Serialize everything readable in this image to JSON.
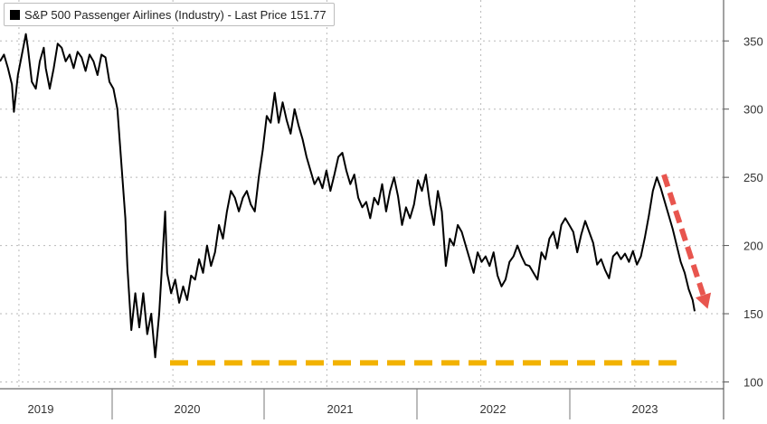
{
  "chart_data": {
    "type": "line",
    "legend": {
      "entries": [
        "S&P 500 Passenger Airlines (Industry) - Last Price 151.77"
      ],
      "placement": "top-left",
      "last_price": 151.77
    },
    "x_tick_labels": [
      "2019",
      "2020",
      "2021",
      "2022",
      "2023"
    ],
    "y_tick_labels": [
      "100",
      "150",
      "200",
      "250",
      "300",
      "350"
    ],
    "ylim": [
      95,
      380
    ],
    "xlim": [
      2019.0,
      2023.7
    ],
    "grid": true,
    "colors": {
      "line": "#000000",
      "support": "#f2b200",
      "trend_arrow": "#e8554e"
    },
    "series": [
      {
        "name": "S&P 500 Passenger Airlines (Industry) - Last Price 151.77",
        "points": [
          [
            2019.0,
            335
          ],
          [
            2019.02,
            340
          ],
          [
            2019.04,
            330
          ],
          [
            2019.06,
            318
          ],
          [
            2019.07,
            298
          ],
          [
            2019.09,
            325
          ],
          [
            2019.11,
            340
          ],
          [
            2019.13,
            355
          ],
          [
            2019.14,
            345
          ],
          [
            2019.16,
            320
          ],
          [
            2019.18,
            315
          ],
          [
            2019.2,
            335
          ],
          [
            2019.22,
            345
          ],
          [
            2019.23,
            330
          ],
          [
            2019.25,
            315
          ],
          [
            2019.27,
            330
          ],
          [
            2019.29,
            348
          ],
          [
            2019.31,
            345
          ],
          [
            2019.33,
            335
          ],
          [
            2019.35,
            340
          ],
          [
            2019.37,
            330
          ],
          [
            2019.39,
            342
          ],
          [
            2019.41,
            338
          ],
          [
            2019.43,
            328
          ],
          [
            2019.45,
            340
          ],
          [
            2019.47,
            335
          ],
          [
            2019.49,
            325
          ],
          [
            2019.51,
            340
          ],
          [
            2019.53,
            338
          ],
          [
            2019.55,
            320
          ],
          [
            2019.57,
            315
          ],
          [
            2019.59,
            300
          ],
          [
            2019.61,
            260
          ],
          [
            2019.63,
            220
          ],
          [
            2019.64,
            185
          ],
          [
            2019.66,
            138
          ],
          [
            2019.68,
            165
          ],
          [
            2019.7,
            140
          ],
          [
            2019.72,
            165
          ],
          [
            2019.74,
            135
          ],
          [
            2019.76,
            150
          ],
          [
            2019.78,
            118
          ],
          [
            2019.8,
            150
          ],
          [
            2019.82,
            200
          ],
          [
            2019.83,
            225
          ],
          [
            2019.84,
            180
          ],
          [
            2019.86,
            165
          ],
          [
            2019.88,
            175
          ],
          [
            2019.9,
            158
          ],
          [
            2019.92,
            170
          ],
          [
            2019.94,
            160
          ],
          [
            2019.96,
            178
          ],
          [
            2019.98,
            175
          ],
          [
            2020.0,
            190
          ],
          [
            2020.02,
            180
          ],
          [
            2020.04,
            200
          ],
          [
            2020.06,
            185
          ],
          [
            2020.08,
            195
          ],
          [
            2020.1,
            215
          ],
          [
            2020.12,
            205
          ],
          [
            2020.14,
            225
          ],
          [
            2020.16,
            240
          ],
          [
            2020.18,
            235
          ],
          [
            2020.2,
            225
          ],
          [
            2020.22,
            235
          ],
          [
            2020.24,
            240
          ],
          [
            2020.26,
            230
          ],
          [
            2020.28,
            225
          ],
          [
            2020.3,
            250
          ],
          [
            2020.32,
            270
          ],
          [
            2020.34,
            295
          ],
          [
            2020.36,
            290
          ],
          [
            2020.38,
            312
          ],
          [
            2020.4,
            290
          ],
          [
            2020.42,
            305
          ],
          [
            2020.44,
            292
          ],
          [
            2020.46,
            282
          ],
          [
            2020.48,
            300
          ],
          [
            2020.5,
            288
          ],
          [
            2020.52,
            278
          ],
          [
            2020.54,
            265
          ],
          [
            2020.56,
            255
          ],
          [
            2020.58,
            245
          ],
          [
            2020.6,
            250
          ],
          [
            2020.62,
            242
          ],
          [
            2020.64,
            255
          ],
          [
            2020.66,
            240
          ],
          [
            2020.68,
            252
          ],
          [
            2020.7,
            265
          ],
          [
            2020.72,
            268
          ],
          [
            2020.74,
            255
          ],
          [
            2020.76,
            245
          ],
          [
            2020.78,
            252
          ],
          [
            2020.8,
            235
          ],
          [
            2020.82,
            228
          ],
          [
            2020.84,
            232
          ],
          [
            2020.86,
            220
          ],
          [
            2020.88,
            235
          ],
          [
            2020.9,
            230
          ],
          [
            2020.92,
            245
          ],
          [
            2020.94,
            225
          ],
          [
            2020.96,
            240
          ],
          [
            2020.98,
            250
          ],
          [
            2021.0,
            236
          ],
          [
            2021.02,
            215
          ],
          [
            2021.04,
            228
          ],
          [
            2021.06,
            220
          ],
          [
            2021.08,
            230
          ],
          [
            2021.1,
            248
          ],
          [
            2021.12,
            240
          ],
          [
            2021.14,
            252
          ],
          [
            2021.16,
            230
          ],
          [
            2021.18,
            215
          ],
          [
            2021.2,
            240
          ],
          [
            2021.22,
            225
          ],
          [
            2021.24,
            185
          ],
          [
            2021.26,
            205
          ],
          [
            2021.28,
            200
          ],
          [
            2021.3,
            215
          ],
          [
            2021.32,
            210
          ],
          [
            2021.34,
            200
          ],
          [
            2021.36,
            190
          ],
          [
            2021.38,
            180
          ],
          [
            2021.4,
            195
          ],
          [
            2021.42,
            188
          ],
          [
            2021.44,
            192
          ],
          [
            2021.46,
            185
          ],
          [
            2021.48,
            195
          ],
          [
            2021.5,
            178
          ],
          [
            2021.52,
            170
          ],
          [
            2021.54,
            175
          ],
          [
            2021.56,
            188
          ],
          [
            2021.58,
            192
          ],
          [
            2021.6,
            200
          ],
          [
            2021.62,
            192
          ],
          [
            2021.64,
            186
          ],
          [
            2021.66,
            185
          ],
          [
            2021.68,
            180
          ],
          [
            2021.7,
            175
          ],
          [
            2021.72,
            195
          ],
          [
            2021.74,
            190
          ],
          [
            2021.76,
            205
          ],
          [
            2021.78,
            210
          ],
          [
            2021.8,
            198
          ],
          [
            2021.82,
            215
          ],
          [
            2021.84,
            220
          ],
          [
            2021.86,
            215
          ],
          [
            2021.88,
            210
          ],
          [
            2021.9,
            195
          ],
          [
            2021.92,
            208
          ],
          [
            2021.94,
            218
          ],
          [
            2021.96,
            210
          ],
          [
            2021.98,
            202
          ],
          [
            2022.0,
            186
          ],
          [
            2022.02,
            190
          ],
          [
            2022.04,
            182
          ],
          [
            2022.06,
            176
          ],
          [
            2022.08,
            192
          ],
          [
            2022.1,
            195
          ],
          [
            2022.12,
            190
          ],
          [
            2022.14,
            194
          ],
          [
            2022.16,
            188
          ],
          [
            2022.18,
            196
          ],
          [
            2022.2,
            186
          ],
          [
            2022.22,
            192
          ],
          [
            2022.24,
            206
          ],
          [
            2022.26,
            222
          ],
          [
            2022.28,
            240
          ],
          [
            2022.3,
            250
          ],
          [
            2022.32,
            242
          ],
          [
            2022.34,
            232
          ],
          [
            2022.36,
            222
          ],
          [
            2022.38,
            212
          ],
          [
            2022.4,
            200
          ],
          [
            2022.42,
            188
          ],
          [
            2022.44,
            180
          ],
          [
            2022.46,
            168
          ],
          [
            2022.48,
            160
          ],
          [
            2022.49,
            151.77
          ]
        ]
      }
    ],
    "annotations": [
      {
        "type": "support-line",
        "style": "dashed",
        "from": [
          2019.8,
          114
        ],
        "to": [
          2023.55,
          114
        ]
      },
      {
        "type": "trend-arrow",
        "style": "dashed",
        "from": [
          2023.42,
          252
        ],
        "to": [
          2023.62,
          152
        ]
      }
    ]
  }
}
